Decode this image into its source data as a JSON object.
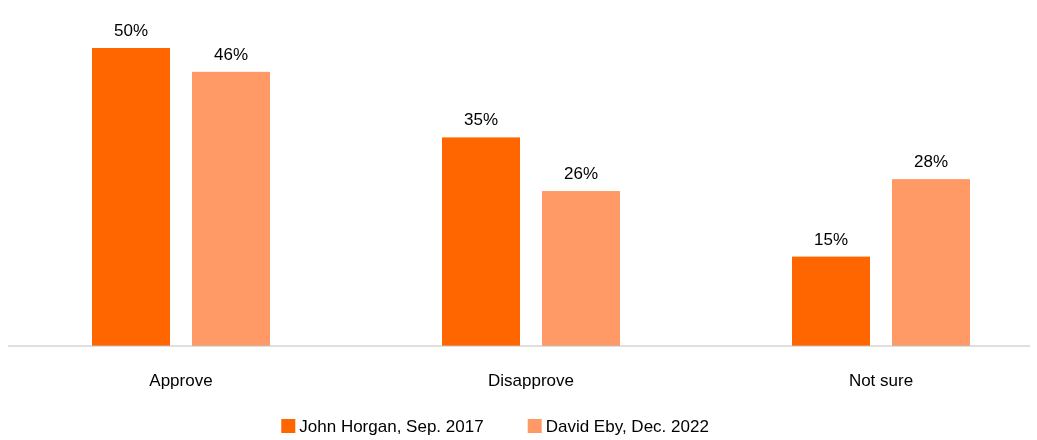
{
  "chart_data": {
    "type": "bar",
    "categories": [
      "Approve",
      "Disapprove",
      "Not sure"
    ],
    "series": [
      {
        "name": "John Horgan, Sep. 2017",
        "color": "#ff6600",
        "values": [
          50,
          35,
          15
        ],
        "value_labels": [
          "50%",
          "35%",
          "15%"
        ]
      },
      {
        "name": "David Eby, Dec. 2022",
        "color": "#ff9966",
        "values": [
          46,
          26,
          28
        ],
        "value_labels": [
          "46%",
          "26%",
          "28%"
        ]
      }
    ],
    "legend": "bottom"
  }
}
